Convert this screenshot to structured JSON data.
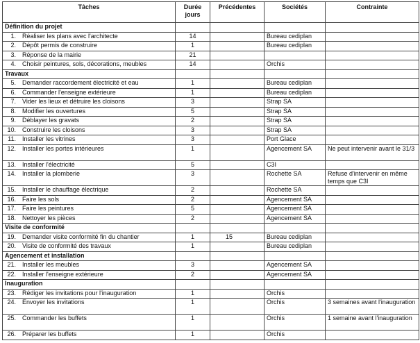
{
  "headers": {
    "taches": "Tâches",
    "duree": "Durée jours",
    "precedentes": "Précédentes",
    "societes": "Sociétés",
    "contrainte": "Contrainte"
  },
  "rows": [
    {
      "type": "section",
      "label": "Définition du projet"
    },
    {
      "type": "task",
      "num": "1.",
      "label": "Réaliser les plans avec l'architecte",
      "duree": "14",
      "prec": "",
      "societe": "Bureau cediplan",
      "contrainte": ""
    },
    {
      "type": "task",
      "num": "2.",
      "label": "Dépôt  permis de construire",
      "duree": "1",
      "prec": "",
      "societe": "Bureau cediplan",
      "contrainte": ""
    },
    {
      "type": "task",
      "num": "3.",
      "label": "Réponse de la mairie",
      "duree": "21",
      "prec": "",
      "societe": "",
      "contrainte": ""
    },
    {
      "type": "task",
      "num": "4.",
      "label": "Choisir peintures,  sols, décorations, meubles",
      "duree": "14",
      "prec": "",
      "societe": "Orchis",
      "contrainte": ""
    },
    {
      "type": "section",
      "label": "Travaux"
    },
    {
      "type": "task",
      "num": "5.",
      "label": "Demander raccordement électricité et eau",
      "duree": "1",
      "prec": "",
      "societe": "Bureau cediplan",
      "contrainte": ""
    },
    {
      "type": "task",
      "num": "6.",
      "label": "Commander l'enseigne extérieure",
      "duree": "1",
      "prec": "",
      "societe": "Bureau cediplan",
      "contrainte": ""
    },
    {
      "type": "task",
      "num": "7.",
      "label": "Vider les lieux et détruire les cloisons",
      "duree": "3",
      "prec": "",
      "societe": "Strap SA",
      "contrainte": ""
    },
    {
      "type": "task",
      "num": "8.",
      "label": "Modifier les ouvertures",
      "duree": "5",
      "prec": "",
      "societe": "Strap SA",
      "contrainte": ""
    },
    {
      "type": "task",
      "num": "9.",
      "label": "Déblayer les gravats",
      "duree": "2",
      "prec": "",
      "societe": "Strap SA",
      "contrainte": ""
    },
    {
      "type": "task",
      "num": "10.",
      "label": "Construire les cloisons",
      "duree": "3",
      "prec": "",
      "societe": "Strap SA",
      "contrainte": ""
    },
    {
      "type": "task",
      "num": "11.",
      "label": "Installer les vitrines",
      "duree": "3",
      "prec": "",
      "societe": "Port Glace",
      "contrainte": ""
    },
    {
      "type": "task",
      "num": "12.",
      "label": "Installer les portes intérieures",
      "duree": "1",
      "prec": "",
      "societe": "Agencement SA",
      "contrainte": "Ne peut intervenir avant le 31/3"
    },
    {
      "type": "task",
      "num": "13.",
      "label": "Installer l'électricité",
      "duree": "5",
      "prec": "",
      "societe": "C3I",
      "contrainte": ""
    },
    {
      "type": "task",
      "num": "14.",
      "label": "Installer la plomberie",
      "duree": "3",
      "prec": "",
      "societe": "Rochette SA",
      "contrainte": "Refuse d'intervenir en même temps que C3I"
    },
    {
      "type": "task",
      "num": "15.",
      "label": "Installer le chauffage électrique",
      "duree": "2",
      "prec": "",
      "societe": "Rochette SA",
      "contrainte": ""
    },
    {
      "type": "task",
      "num": "16.",
      "label": "Faire les sols",
      "duree": "2",
      "prec": "",
      "societe": "Agencement SA",
      "contrainte": ""
    },
    {
      "type": "task",
      "num": "17.",
      "label": "Faire les peintures",
      "duree": "5",
      "prec": "",
      "societe": "Agencement SA",
      "contrainte": ""
    },
    {
      "type": "task",
      "num": "18.",
      "label": "Nettoyer les pièces",
      "duree": "2",
      "prec": "",
      "societe": "Agencement SA",
      "contrainte": ""
    },
    {
      "type": "section",
      "label": "Visite de conformité"
    },
    {
      "type": "task",
      "num": "19.",
      "label": "Demander visite conformité fin du chantier",
      "duree": "1",
      "prec": "15",
      "societe": "Bureau cediplan",
      "contrainte": ""
    },
    {
      "type": "task",
      "num": "20.",
      "label": "Visite de conformité des travaux",
      "duree": "1",
      "prec": "",
      "societe": "Bureau cediplan",
      "contrainte": ""
    },
    {
      "type": "section",
      "label": "Agencement et installation"
    },
    {
      "type": "task",
      "num": "21.",
      "label": "Installer les meubles",
      "duree": "3",
      "prec": "",
      "societe": "Agencement SA",
      "contrainte": ""
    },
    {
      "type": "task",
      "num": "22.",
      "label": "Installer l'enseigne extérieure",
      "duree": "2",
      "prec": "",
      "societe": "Agencement SA",
      "contrainte": ""
    },
    {
      "type": "section",
      "label": "Inauguration"
    },
    {
      "type": "task",
      "num": "23.",
      "label": "Rédiger les invitations pour l'inauguration",
      "duree": "1",
      "prec": "",
      "societe": "Orchis",
      "contrainte": ""
    },
    {
      "type": "task",
      "num": "24.",
      "label": "Envoyer les invitations",
      "duree": "1",
      "prec": "",
      "societe": "Orchis",
      "contrainte": "3 semaines avant l'inauguration"
    },
    {
      "type": "task",
      "num": "25.",
      "label": "Commander les buffets",
      "duree": "1",
      "prec": "",
      "societe": "Orchis",
      "contrainte": "1 semaine avant l'inauguration"
    },
    {
      "type": "task",
      "num": "26.",
      "label": "Préparer les buffets",
      "duree": "1",
      "prec": "",
      "societe": "Orchis",
      "contrainte": ""
    }
  ]
}
